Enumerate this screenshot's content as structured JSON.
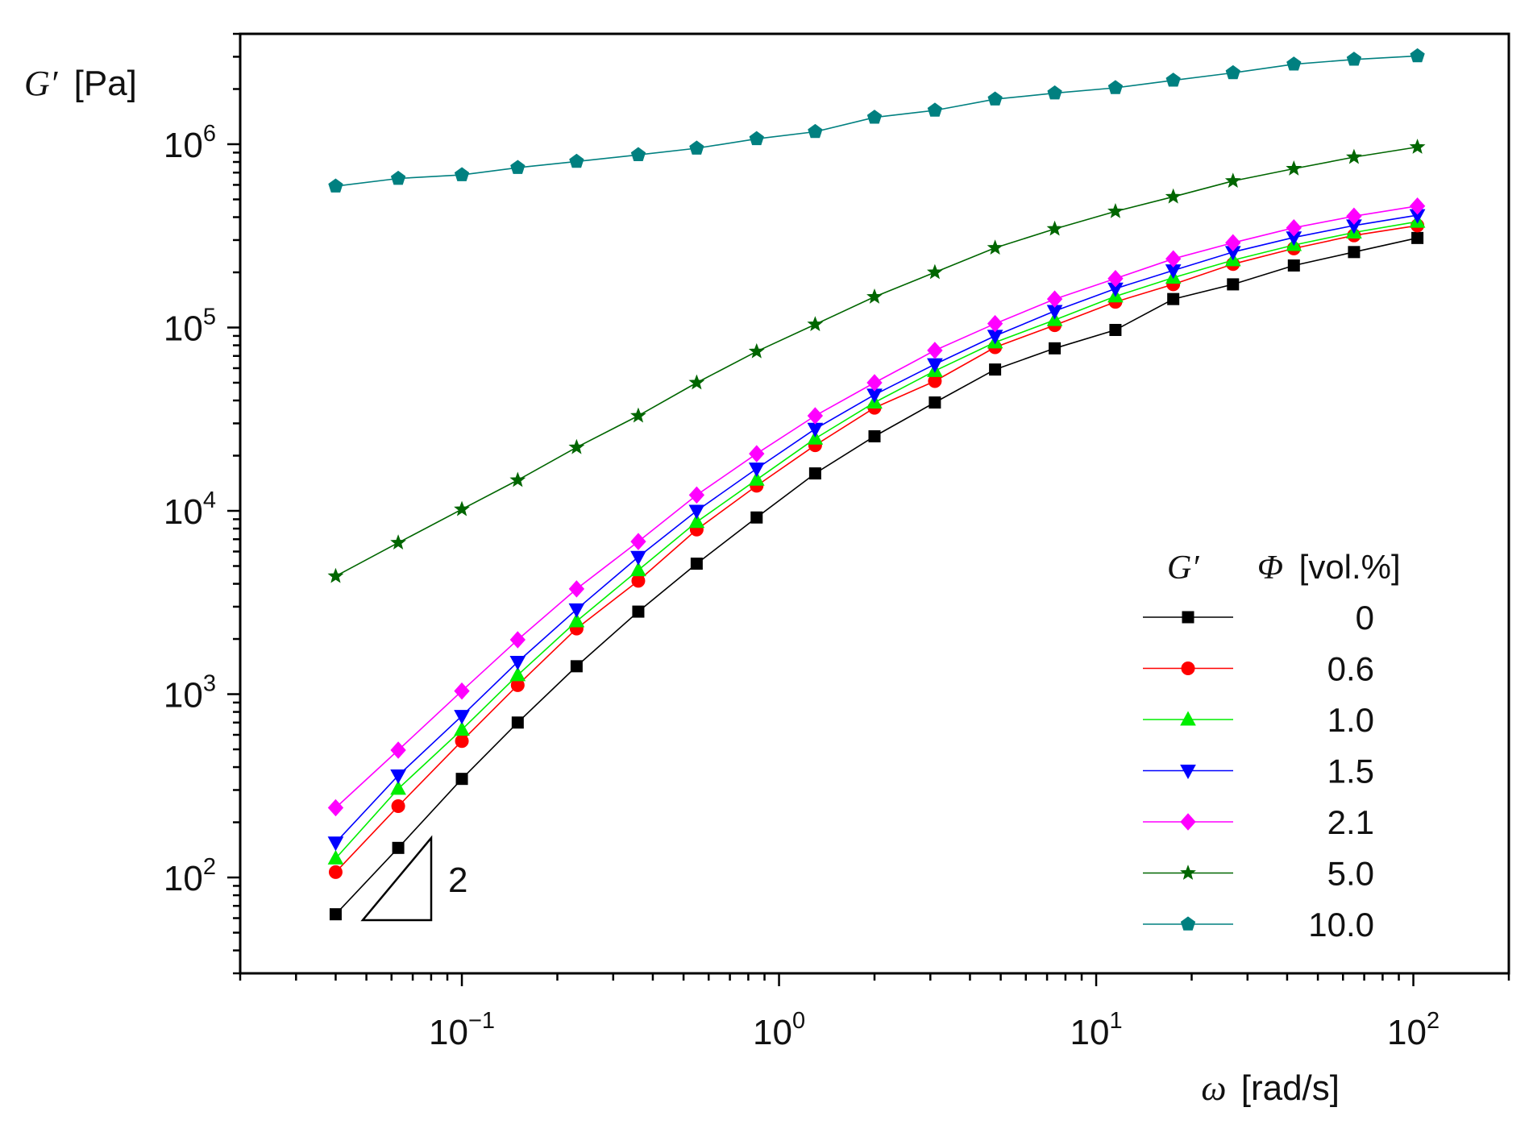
{
  "chart_data": {
    "type": "line",
    "title": "",
    "xlabel": {
      "symbol": "ω",
      "unit": "[rad/s]"
    },
    "ylabel": {
      "symbol": "G′",
      "unit": "[Pa]"
    },
    "xscale": "log",
    "yscale": "log",
    "xlim": [
      0.02,
      200
    ],
    "ylim": [
      30,
      4000000
    ],
    "x_ticks": [
      {
        "base": "10",
        "exp": "-1",
        "value": 0.1
      },
      {
        "base": "10",
        "exp": "0",
        "value": 1
      },
      {
        "base": "10",
        "exp": "1",
        "value": 10
      },
      {
        "base": "10",
        "exp": "2",
        "value": 100
      }
    ],
    "y_ticks": [
      {
        "base": "10",
        "exp": "2",
        "value": 100
      },
      {
        "base": "10",
        "exp": "3",
        "value": 1000
      },
      {
        "base": "10",
        "exp": "4",
        "value": 10000
      },
      {
        "base": "10",
        "exp": "5",
        "value": 100000
      },
      {
        "base": "10",
        "exp": "6",
        "value": 1000000
      }
    ],
    "x": [
      0.04,
      0.063,
      0.1,
      0.15,
      0.23,
      0.36,
      0.55,
      0.85,
      1.3,
      2.0,
      3.1,
      4.8,
      7.4,
      11.5,
      17.5,
      27,
      42,
      65,
      103
    ],
    "legend": {
      "position": "lower-right",
      "header_series": "G′",
      "header_param_symbol": "Φ",
      "header_param_unit": "[vol.%]"
    },
    "annotation": {
      "type": "slope-triangle",
      "label": "2"
    },
    "series": [
      {
        "name": "0",
        "color": "#000000",
        "marker": "square",
        "values": [
          63,
          145,
          345,
          700,
          1420,
          2820,
          5150,
          9200,
          16000,
          25500,
          39000,
          59000,
          77000,
          97000,
          143000,
          172000,
          218000,
          258000,
          308000
        ]
      },
      {
        "name": "0.6",
        "color": "#ff0000",
        "marker": "circle",
        "values": [
          107,
          245,
          555,
          1120,
          2280,
          4150,
          7900,
          13700,
          22800,
          36500,
          51000,
          78000,
          103000,
          138000,
          172000,
          222000,
          270000,
          318000,
          360000
        ]
      },
      {
        "name": "1.0",
        "color": "#00ee00",
        "marker": "triangle-up",
        "values": [
          127,
          305,
          640,
          1270,
          2500,
          4750,
          8700,
          14800,
          24800,
          39000,
          58000,
          83000,
          110000,
          148000,
          187000,
          233000,
          282000,
          330000,
          378000
        ]
      },
      {
        "name": "1.5",
        "color": "#0000ff",
        "marker": "triangle-down",
        "values": [
          155,
          360,
          760,
          1500,
          2900,
          5600,
          10000,
          17000,
          28000,
          43000,
          63000,
          90000,
          123000,
          163000,
          205000,
          258000,
          310000,
          360000,
          410000
        ]
      },
      {
        "name": "2.1",
        "color": "#ff00ff",
        "marker": "diamond",
        "values": [
          240,
          495,
          1040,
          1980,
          3750,
          6800,
          12200,
          20500,
          33000,
          50000,
          75000,
          105000,
          143000,
          185000,
          237000,
          290000,
          350000,
          405000,
          460000
        ]
      },
      {
        "name": "5.0",
        "color": "#006600",
        "marker": "star",
        "values": [
          4400,
          6700,
          10200,
          14700,
          22200,
          33000,
          50000,
          74000,
          104000,
          147000,
          200000,
          272000,
          345000,
          430000,
          517000,
          630000,
          735000,
          850000,
          965000
        ]
      },
      {
        "name": "10.0",
        "color": "#008080",
        "marker": "pentagon",
        "values": [
          590000,
          650000,
          680000,
          745000,
          805000,
          875000,
          950000,
          1070000,
          1170000,
          1400000,
          1530000,
          1760000,
          1900000,
          2030000,
          2230000,
          2450000,
          2730000,
          2900000,
          3030000
        ]
      }
    ]
  }
}
